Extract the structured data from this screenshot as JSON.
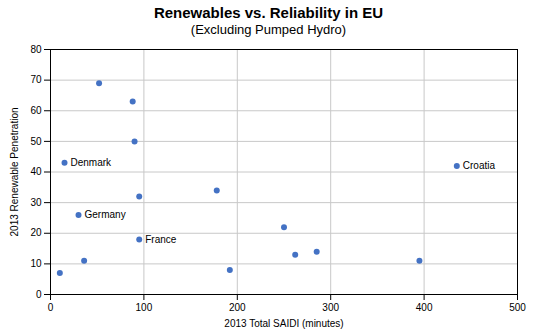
{
  "chart_data": {
    "type": "scatter",
    "title": "Renewables vs. Reliability in EU",
    "subtitle": "(Excluding Pumped Hydro)",
    "xlabel": "2013 Total SAIDI (minutes)",
    "ylabel": "2013 Renewable Penetration",
    "x": [
      15,
      30,
      10,
      36,
      52,
      88,
      90,
      95,
      95,
      178,
      192,
      250,
      262,
      285,
      395,
      435
    ],
    "values": [
      43,
      26,
      7,
      11,
      69,
      63,
      50,
      18,
      32,
      34,
      8,
      22,
      13,
      14,
      11,
      42
    ],
    "annotations": [
      {
        "x": 15,
        "y": 43,
        "text": "Denmark"
      },
      {
        "x": 30,
        "y": 26,
        "text": "Germany"
      },
      {
        "x": 95,
        "y": 18,
        "text": "France"
      },
      {
        "x": 435,
        "y": 42,
        "text": "Croatia"
      }
    ],
    "color": "#4472C4",
    "xlim": [
      0,
      500
    ],
    "ylim": [
      0,
      80
    ],
    "xticks": [
      0,
      100,
      200,
      300,
      400,
      500
    ],
    "yticks": [
      0,
      10,
      20,
      30,
      40,
      50,
      60,
      70,
      80
    ],
    "grid": true
  }
}
